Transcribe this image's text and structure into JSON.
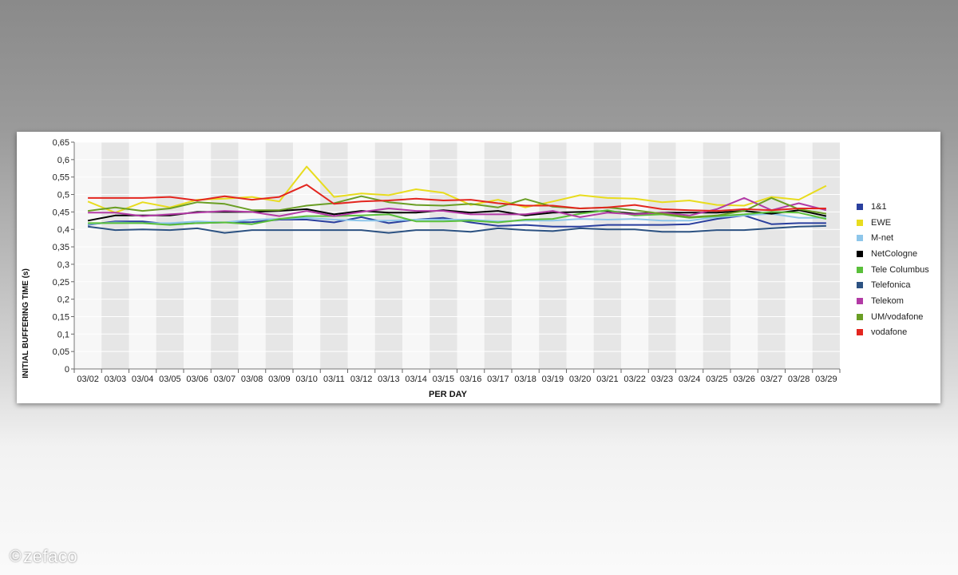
{
  "watermark": {
    "symbol": "©",
    "text": "zefaco"
  },
  "chart_data": {
    "type": "line",
    "title": "",
    "xlabel": "PER DAY",
    "ylabel": "INITIAL BUFFERING TIME (s)",
    "ylim": [
      0,
      0.65
    ],
    "ytick_step": 0.05,
    "y_ticks": [
      "0",
      "0,05",
      "0,1",
      "0,15",
      "0,2",
      "0,25",
      "0,3",
      "0,35",
      "0,4",
      "0,45",
      "0,5",
      "0,55",
      "0,6",
      "0,65"
    ],
    "grid": true,
    "legend_position": "right",
    "categories": [
      "03/02",
      "03/03",
      "03/04",
      "03/05",
      "03/06",
      "03/07",
      "03/08",
      "03/09",
      "03/10",
      "03/11",
      "03/12",
      "03/13",
      "03/14",
      "03/15",
      "03/16",
      "03/17",
      "03/18",
      "03/19",
      "03/20",
      "03/21",
      "03/22",
      "03/23",
      "03/24",
      "03/25",
      "03/26",
      "03/27",
      "03/28",
      "03/29"
    ],
    "series": [
      {
        "name": "1&1",
        "color": "#2a3f9e",
        "values": [
          0.413,
          0.423,
          0.423,
          0.415,
          0.418,
          0.42,
          0.421,
          0.428,
          0.428,
          0.42,
          0.435,
          0.418,
          0.428,
          0.433,
          0.42,
          0.41,
          0.413,
          0.408,
          0.408,
          0.413,
          0.413,
          0.413,
          0.415,
          0.43,
          0.44,
          0.415,
          0.418,
          0.418
        ]
      },
      {
        "name": "EWE",
        "color": "#e8dc1e",
        "values": [
          0.48,
          0.448,
          0.478,
          0.463,
          0.485,
          0.488,
          0.493,
          0.48,
          0.58,
          0.493,
          0.503,
          0.498,
          0.515,
          0.505,
          0.47,
          0.485,
          0.463,
          0.48,
          0.498,
          0.49,
          0.488,
          0.478,
          0.483,
          0.47,
          0.468,
          0.493,
          0.485,
          0.525
        ]
      },
      {
        "name": "M-net",
        "color": "#8ec6ea",
        "values": [
          0.415,
          0.42,
          0.418,
          0.418,
          0.423,
          0.42,
          0.428,
          0.43,
          0.433,
          0.428,
          0.425,
          0.425,
          0.428,
          0.428,
          0.428,
          0.423,
          0.425,
          0.425,
          0.43,
          0.428,
          0.43,
          0.425,
          0.425,
          0.435,
          0.44,
          0.445,
          0.433,
          0.433
        ]
      },
      {
        "name": "NetCologne",
        "color": "#000000",
        "values": [
          0.425,
          0.44,
          0.44,
          0.44,
          0.45,
          0.45,
          0.45,
          0.453,
          0.458,
          0.443,
          0.453,
          0.448,
          0.448,
          0.455,
          0.448,
          0.453,
          0.44,
          0.448,
          0.45,
          0.453,
          0.445,
          0.448,
          0.448,
          0.448,
          0.453,
          0.445,
          0.455,
          0.438
        ]
      },
      {
        "name": "Tele Columbus",
        "color": "#5abf3a",
        "values": [
          0.418,
          0.418,
          0.418,
          0.413,
          0.418,
          0.42,
          0.415,
          0.43,
          0.438,
          0.438,
          0.44,
          0.443,
          0.423,
          0.423,
          0.425,
          0.42,
          0.428,
          0.43,
          0.445,
          0.455,
          0.44,
          0.443,
          0.433,
          0.438,
          0.443,
          0.45,
          0.448,
          0.43
        ]
      },
      {
        "name": "Telefonica",
        "color": "#2c5282",
        "values": [
          0.408,
          0.398,
          0.4,
          0.398,
          0.403,
          0.39,
          0.398,
          0.398,
          0.398,
          0.398,
          0.398,
          0.39,
          0.398,
          0.398,
          0.393,
          0.403,
          0.398,
          0.395,
          0.403,
          0.4,
          0.4,
          0.393,
          0.393,
          0.398,
          0.398,
          0.403,
          0.408,
          0.41
        ]
      },
      {
        "name": "Telekom",
        "color": "#b23aa5",
        "values": [
          0.448,
          0.448,
          0.438,
          0.443,
          0.448,
          0.453,
          0.45,
          0.438,
          0.453,
          0.438,
          0.45,
          0.46,
          0.453,
          0.453,
          0.443,
          0.443,
          0.443,
          0.453,
          0.435,
          0.448,
          0.443,
          0.448,
          0.44,
          0.458,
          0.49,
          0.455,
          0.475,
          0.455
        ]
      },
      {
        "name": "UM/vodafone",
        "color": "#6a9e24",
        "values": [
          0.453,
          0.463,
          0.453,
          0.46,
          0.478,
          0.473,
          0.455,
          0.455,
          0.468,
          0.475,
          0.495,
          0.478,
          0.47,
          0.468,
          0.473,
          0.463,
          0.487,
          0.465,
          0.46,
          0.463,
          0.455,
          0.445,
          0.435,
          0.44,
          0.453,
          0.49,
          0.458,
          0.445
        ]
      },
      {
        "name": "vodafone",
        "color": "#e3261f",
        "values": [
          0.49,
          0.49,
          0.49,
          0.493,
          0.483,
          0.495,
          0.485,
          0.493,
          0.528,
          0.473,
          0.48,
          0.483,
          0.488,
          0.483,
          0.485,
          0.475,
          0.468,
          0.468,
          0.46,
          0.463,
          0.47,
          0.458,
          0.455,
          0.453,
          0.458,
          0.455,
          0.46,
          0.46
        ]
      }
    ]
  }
}
